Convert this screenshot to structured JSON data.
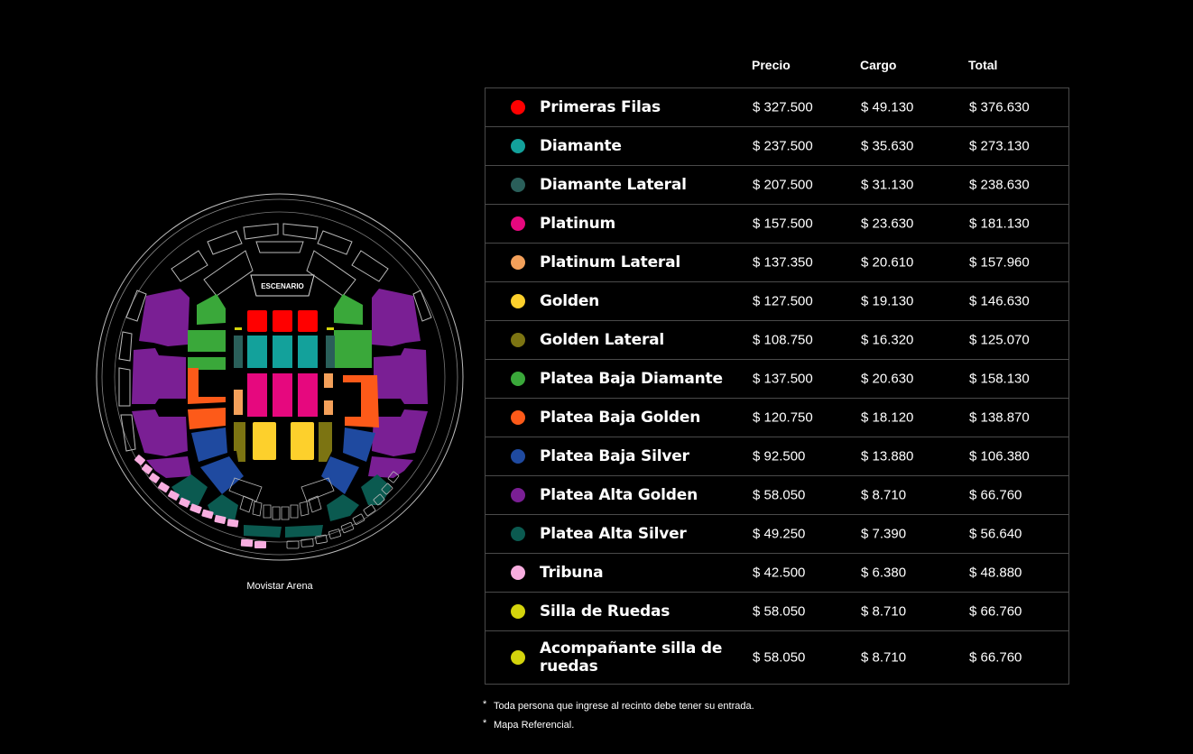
{
  "venue": {
    "name": "Movistar Arena",
    "stage_label": "ESCENARIO"
  },
  "table": {
    "headers": {
      "price": "Precio",
      "fee": "Cargo",
      "total": "Total"
    },
    "rows": [
      {
        "zone": "Primeras Filas",
        "color": "#ff0000",
        "price": "$ 327.500",
        "fee": "$ 49.130",
        "total": "$ 376.630"
      },
      {
        "zone": "Diamante",
        "color": "#13a19b",
        "price": "$ 237.500",
        "fee": "$ 35.630",
        "total": "$ 273.130"
      },
      {
        "zone": "Diamante Lateral",
        "color": "#2a5f5a",
        "price": "$ 207.500",
        "fee": "$ 31.130",
        "total": "$ 238.630"
      },
      {
        "zone": "Platinum",
        "color": "#e6087e",
        "price": "$ 157.500",
        "fee": "$ 23.630",
        "total": "$ 181.130"
      },
      {
        "zone": "Platinum Lateral",
        "color": "#f3a05a",
        "price": "$ 137.350",
        "fee": "$ 20.610",
        "total": "$ 157.960"
      },
      {
        "zone": "Golden",
        "color": "#fdd02c",
        "price": "$ 127.500",
        "fee": "$ 19.130",
        "total": "$ 146.630"
      },
      {
        "zone": "Golden Lateral",
        "color": "#7c7412",
        "price": "$ 108.750",
        "fee": "$ 16.320",
        "total": "$ 125.070"
      },
      {
        "zone": "Platea Baja Diamante",
        "color": "#3aa83a",
        "price": "$ 137.500",
        "fee": "$ 20.630",
        "total": "$ 158.130"
      },
      {
        "zone": "Platea Baja Golden",
        "color": "#fd5a19",
        "price": "$ 120.750",
        "fee": "$ 18.120",
        "total": "$ 138.870"
      },
      {
        "zone": "Platea Baja Silver",
        "color": "#1f4aa0",
        "price": "$ 92.500",
        "fee": "$ 13.880",
        "total": "$ 106.380"
      },
      {
        "zone": "Platea Alta Golden",
        "color": "#7a1f94",
        "price": "$ 58.050",
        "fee": "$ 8.710",
        "total": "$ 66.760"
      },
      {
        "zone": "Platea Alta Silver",
        "color": "#0b5a50",
        "price": "$ 49.250",
        "fee": "$ 7.390",
        "total": "$ 56.640"
      },
      {
        "zone": "Tribuna",
        "color": "#f7addf",
        "price": "$ 42.500",
        "fee": "$ 6.380",
        "total": "$ 48.880"
      },
      {
        "zone": "Silla de Ruedas",
        "color": "#d4d40c",
        "price": "$ 58.050",
        "fee": "$ 8.710",
        "total": "$ 66.760"
      },
      {
        "zone": "Acompañante silla de ruedas",
        "color": "#d4d40c",
        "price": "$ 58.050",
        "fee": "$ 8.710",
        "total": "$ 66.760"
      }
    ]
  },
  "notes": [
    "Toda persona que ingrese al recinto debe tener su entrada.",
    "Mapa Referencial."
  ],
  "note_bullet": "*"
}
